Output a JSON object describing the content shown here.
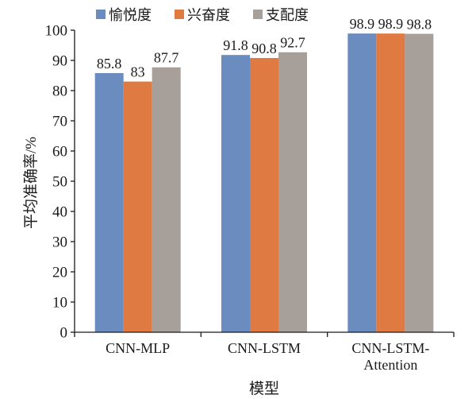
{
  "chart_data": {
    "type": "bar",
    "categories": [
      "CNN-MLP",
      "CNN-LSTM",
      "CNN-LSTM-Attention"
    ],
    "series": [
      {
        "name": "愉悦度",
        "values": [
          85.8,
          91.8,
          98.9
        ],
        "color": "#6b8cbf"
      },
      {
        "name": "兴奋度",
        "values": [
          83,
          90.8,
          98.9
        ],
        "color": "#e07a43"
      },
      {
        "name": "支配度",
        "values": [
          87.7,
          92.7,
          98.8
        ],
        "color": "#a69f9a"
      }
    ],
    "xlabel": "模型",
    "ylabel": "平均准确率/%",
    "ylim": [
      0,
      100
    ],
    "yticks": [
      0,
      10,
      20,
      30,
      40,
      50,
      60,
      70,
      80,
      90,
      100
    ],
    "legend": "top",
    "grid": false
  }
}
